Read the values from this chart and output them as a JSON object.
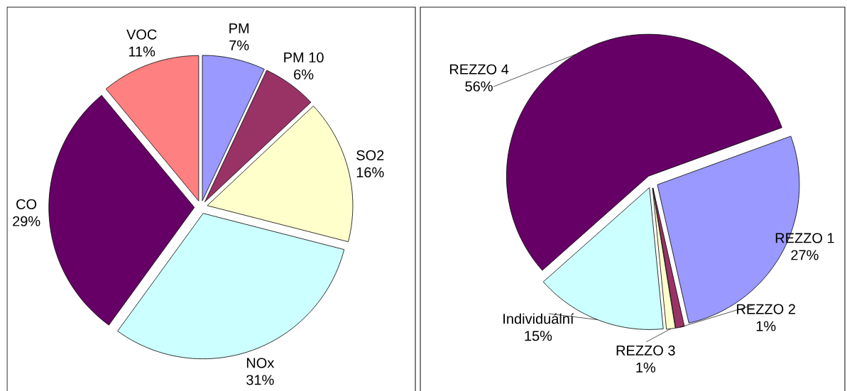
{
  "chart_data": [
    {
      "type": "pie",
      "categories": [
        "PM",
        "PM 10",
        "SO2",
        "NOx",
        "CO",
        "VOC"
      ],
      "values": [
        7,
        6,
        16,
        31,
        29,
        11
      ],
      "colors": [
        "#9999ff",
        "#993366",
        "#ffffcc",
        "#ccffff",
        "#660066",
        "#ff8080"
      ],
      "value_labels": [
        "7%",
        "6%",
        "16%",
        "31%",
        "29%",
        "11%"
      ]
    },
    {
      "type": "pie",
      "categories": [
        "REZZO 1",
        "REZZO 2",
        "REZZO 3",
        "Individuální",
        "REZZO 4"
      ],
      "values": [
        27,
        1,
        1,
        15,
        56
      ],
      "colors": [
        "#9999ff",
        "#993366",
        "#ffffcc",
        "#ccffff",
        "#660066"
      ],
      "value_labels": [
        "27%",
        "1%",
        "1%",
        "15%",
        "56%"
      ]
    }
  ]
}
